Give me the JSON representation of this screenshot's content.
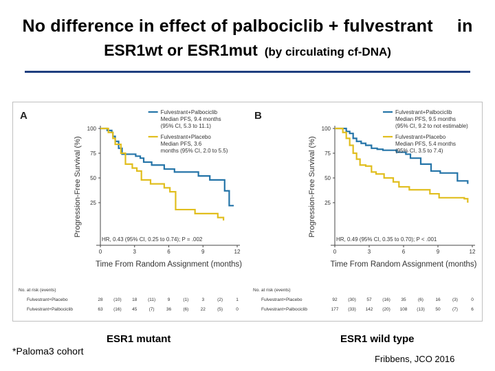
{
  "slide": {
    "title_line1": "No difference in effect of palbociclib + fulvestrant",
    "title_in": "in",
    "title_line2_main": "ESR1wt or ESR1mut",
    "title_line2_small": "(by circulating cf-DNA)",
    "cohort_note": "*Paloma3 cohort",
    "citation": "Fribbens, JCO 2016",
    "rule_color": "#1f3f7f"
  },
  "colors": {
    "palbo": "#2474a8",
    "placebo": "#e1be1e"
  },
  "chart_data": [
    {
      "type": "line",
      "panel_letter": "A",
      "caption": "ESR1 mutant",
      "xlabel": "Time From Random Assignment (months)",
      "ylabel": "Progression-Free Survival (%)",
      "xlim": [
        0,
        12
      ],
      "ylim": [
        0,
        100
      ],
      "xticks": [
        0,
        3,
        6,
        9,
        12
      ],
      "yticks": [
        25,
        50,
        75,
        100
      ],
      "legend_position": "top-right",
      "series": [
        {
          "name": "Fulvestrant+Palbociclib",
          "legend_lines": [
            "Fulvestrant+Palbociclib",
            "Median PFS, 9.4 months",
            "(95% CI, 5.3 to 11.1)"
          ],
          "color_key": "palbo",
          "x": [
            0,
            0.4,
            0.6,
            1.0,
            1.1,
            1.3,
            1.6,
            1.9,
            2.5,
            3.1,
            3.5,
            3.8,
            4.5,
            5.6,
            6.5,
            7.5,
            8.6,
            9.6,
            10.9,
            11.3,
            11.7
          ],
          "y": [
            100,
            100,
            98,
            96,
            92,
            87,
            80,
            74,
            74,
            72,
            70,
            66,
            63,
            59,
            56,
            56,
            52,
            48,
            37,
            22,
            22
          ]
        },
        {
          "name": "Fulvestrant+Placebo",
          "legend_lines": [
            "Fulvestrant+Placebo",
            "Median PFS, 3.6",
            "months (95% CI, 2.0 to 5.5)"
          ],
          "color_key": "placebo",
          "x": [
            0,
            0.5,
            0.7,
            1.1,
            1.3,
            1.8,
            2.2,
            2.8,
            3.2,
            3.6,
            4.4,
            5.6,
            6.1,
            6.6,
            8.3,
            10.3,
            10.8
          ],
          "y": [
            100,
            100,
            96,
            90,
            84,
            75,
            64,
            60,
            57,
            48,
            44,
            40,
            36,
            18,
            14,
            10,
            7
          ]
        }
      ],
      "annotation": "HR, 0.43 (95% CI, 0.25 to 0.74); P = .002",
      "risk_table": {
        "header": "No. at risk (events)",
        "x": [
          0,
          1.5,
          3,
          4.5,
          6,
          7.5,
          9,
          10.5,
          12
        ],
        "rows": [
          {
            "label": "Fulvestrant+Placebo",
            "values": [
              "28",
              "(10)",
              "18",
              "(11)",
              "9",
              "(1)",
              "3",
              "(2)",
              "1"
            ]
          },
          {
            "label": "Fulvestrant+Palbociclib",
            "values": [
              "63",
              "(16)",
              "45",
              "(7)",
              "36",
              "(6)",
              "22",
              "(5)",
              "0"
            ]
          }
        ]
      }
    },
    {
      "type": "line",
      "panel_letter": "B",
      "caption": "ESR1 wild type",
      "xlabel": "Time From Random Assignment (months)",
      "ylabel": "Progression-Free Survival (%)",
      "xlim": [
        0,
        12
      ],
      "ylim": [
        0,
        100
      ],
      "xticks": [
        0,
        3,
        6,
        9,
        12
      ],
      "yticks": [
        25,
        50,
        75,
        100
      ],
      "legend_position": "top-right",
      "series": [
        {
          "name": "Fulvestrant+Palbociclib",
          "legend_lines": [
            "Fulvestrant+Palbociclib",
            "Median PFS, 9.5 months",
            "(95% CI, 9.2 to not estimable)"
          ],
          "color_key": "palbo",
          "x": [
            0,
            0.6,
            1.0,
            1.3,
            1.6,
            1.9,
            2.3,
            2.7,
            3.2,
            3.7,
            4.2,
            5.4,
            6.2,
            6.6,
            7.5,
            8.4,
            9.2,
            10.7,
            11.6
          ],
          "y": [
            100,
            100,
            97,
            95,
            90,
            87,
            85,
            83,
            80,
            79,
            78,
            76,
            74,
            70,
            64,
            57,
            55,
            47,
            44
          ]
        },
        {
          "name": "Fulvestrant+Placebo",
          "legend_lines": [
            "Fulvestrant+Placebo",
            "Median PFS, 5.4 months",
            "(95% CI, 3.5 to 7.4)"
          ],
          "color_key": "placebo",
          "x": [
            0,
            0.4,
            0.7,
            1.0,
            1.3,
            1.6,
            1.9,
            2.2,
            2.7,
            3.2,
            3.6,
            4.3,
            5.1,
            5.6,
            6.5,
            8.3,
            9.1,
            11.3,
            11.6
          ],
          "y": [
            100,
            100,
            96,
            90,
            83,
            75,
            69,
            63,
            62,
            56,
            54,
            50,
            46,
            41,
            38,
            34,
            30,
            29,
            25
          ]
        }
      ],
      "annotation": "HR, 0.49 (95% CI, 0.35 to 0.70); P < .001",
      "risk_table": {
        "header": "No. at risk (events)",
        "x": [
          0,
          1.5,
          3,
          4.5,
          6,
          7.5,
          9,
          10.5,
          12
        ],
        "rows": [
          {
            "label": "Fulvestrant+Placebo",
            "values": [
              "92",
              "(30)",
              "57",
              "(16)",
              "35",
              "(6)",
              "16",
              "(3)",
              "0"
            ]
          },
          {
            "label": "Fulvestrant+Palbociclib",
            "values": [
              "177",
              "(33)",
              "142",
              "(20)",
              "108",
              "(13)",
              "50",
              "(7)",
              "6"
            ]
          }
        ]
      }
    }
  ]
}
